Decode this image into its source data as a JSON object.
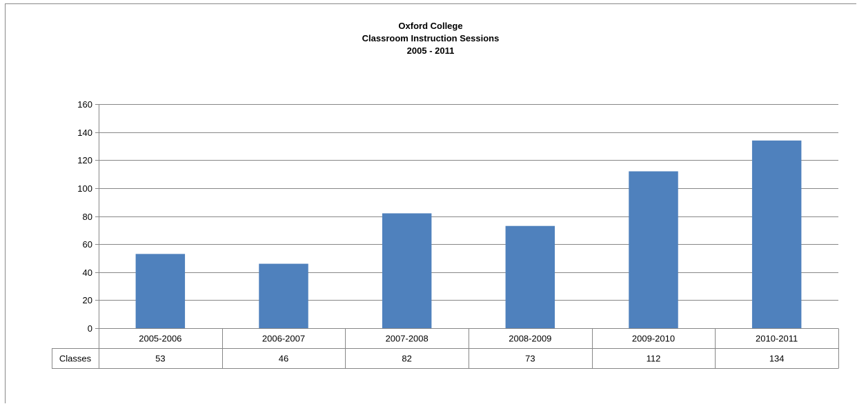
{
  "chart_data": {
    "type": "bar",
    "title_lines": [
      "Oxford College",
      "Classroom Instruction Sessions",
      "2005 - 2011"
    ],
    "categories": [
      "2005-2006",
      "2006-2007",
      "2007-2008",
      "2008-2009",
      "2009-2010",
      "2010-2011"
    ],
    "series": [
      {
        "name": "Classes",
        "values": [
          53,
          46,
          82,
          73,
          112,
          134
        ]
      }
    ],
    "ylim": [
      0,
      160
    ],
    "yticks": [
      0,
      20,
      40,
      60,
      80,
      100,
      120,
      140,
      160
    ],
    "grid": true,
    "legend": "data table",
    "bar_color": "#4F81BD",
    "grid_color": "#868686"
  }
}
